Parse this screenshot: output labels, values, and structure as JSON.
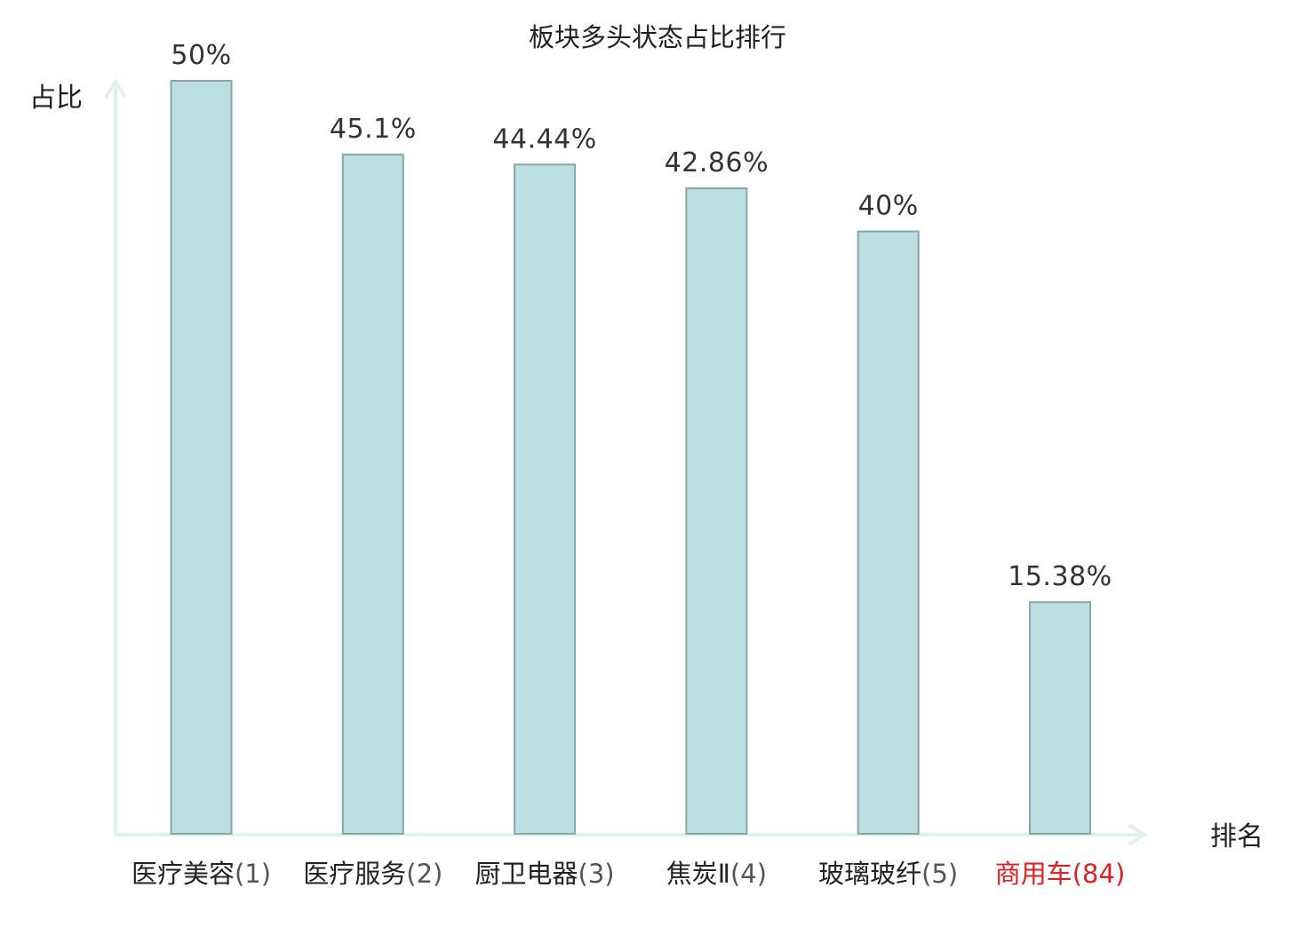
{
  "chart_data": {
    "type": "bar",
    "title": "板块多头状态占比排行",
    "ylabel": "占比",
    "xlabel": "排名",
    "ylim": [
      0,
      50
    ],
    "grid": false,
    "categories": [
      {
        "name": "医疗美容",
        "rank": "(1)",
        "highlight": false
      },
      {
        "name": "医疗服务",
        "rank": "(2)",
        "highlight": false
      },
      {
        "name": "厨卫电器",
        "rank": "(3)",
        "highlight": false
      },
      {
        "name": "焦炭Ⅱ",
        "rank": "(4)",
        "highlight": false
      },
      {
        "name": "玻璃玻纤",
        "rank": "(5)",
        "highlight": false
      },
      {
        "name": "商用车",
        "rank": "(84)",
        "highlight": true
      }
    ],
    "values": [
      50,
      45.1,
      44.44,
      42.86,
      40,
      15.38
    ],
    "value_labels": [
      "50%",
      "45.1%",
      "44.44%",
      "42.86%",
      "40%",
      "15.38%"
    ]
  },
  "colors": {
    "bar_fill": "#bce0e2",
    "bar_stroke": "#88a6a8",
    "axis": "#e0f2ee",
    "text": "#222222",
    "value_text": "#333333",
    "highlight_text": "#e02020",
    "rank_text": "#555555"
  }
}
